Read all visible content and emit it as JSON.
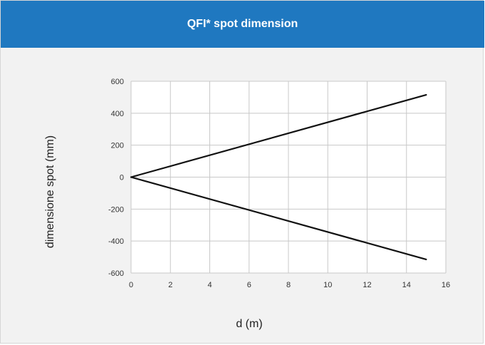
{
  "header": {
    "title": "QFI* spot dimension"
  },
  "colors": {
    "header_bg": "#1f78c0",
    "panel_bg": "#f2f2f2",
    "plot_bg": "#ffffff",
    "grid": "#c8c8c8",
    "line": "#111111"
  },
  "chart_data": {
    "type": "line",
    "title": "",
    "xlabel": "d (m)",
    "ylabel": "dimensione spot (mm)",
    "xlim": [
      0,
      16
    ],
    "ylim": [
      -600,
      600
    ],
    "xticks": [
      0,
      2,
      4,
      6,
      8,
      10,
      12,
      14,
      16
    ],
    "yticks": [
      600,
      400,
      200,
      0,
      -200,
      -400,
      -600
    ],
    "grid": true,
    "legend": "none",
    "series": [
      {
        "x": [
          0,
          15
        ],
        "y": [
          0,
          515
        ]
      },
      {
        "x": [
          0,
          15
        ],
        "y": [
          0,
          -515
        ]
      }
    ]
  }
}
